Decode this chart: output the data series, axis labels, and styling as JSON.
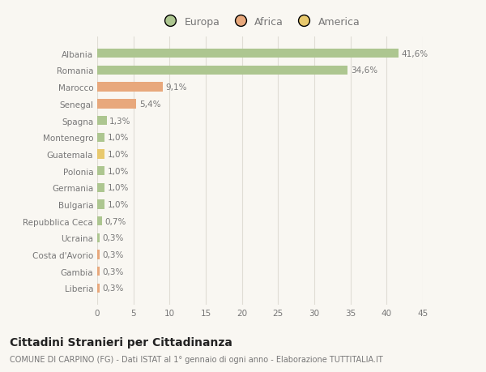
{
  "countries": [
    "Albania",
    "Romania",
    "Marocco",
    "Senegal",
    "Spagna",
    "Montenegro",
    "Guatemala",
    "Polonia",
    "Germania",
    "Bulgaria",
    "Repubblica Ceca",
    "Ucraina",
    "Costa d'Avorio",
    "Gambia",
    "Liberia"
  ],
  "values": [
    41.6,
    34.6,
    9.1,
    5.4,
    1.3,
    1.0,
    1.0,
    1.0,
    1.0,
    1.0,
    0.7,
    0.3,
    0.3,
    0.3,
    0.3
  ],
  "labels": [
    "41,6%",
    "34,6%",
    "9,1%",
    "5,4%",
    "1,3%",
    "1,0%",
    "1,0%",
    "1,0%",
    "1,0%",
    "1,0%",
    "0,7%",
    "0,3%",
    "0,3%",
    "0,3%",
    "0,3%"
  ],
  "colors": [
    "#adc690",
    "#adc690",
    "#e8a87c",
    "#e8a87c",
    "#adc690",
    "#adc690",
    "#e8c96e",
    "#adc690",
    "#adc690",
    "#adc690",
    "#adc690",
    "#adc690",
    "#e8a87c",
    "#e8a87c",
    "#e8a87c"
  ],
  "continent": [
    "Europa",
    "Europa",
    "Africa",
    "Africa",
    "Europa",
    "Europa",
    "America",
    "Europa",
    "Europa",
    "Europa",
    "Europa",
    "Europa",
    "Africa",
    "Africa",
    "Africa"
  ],
  "legend_labels": [
    "Europa",
    "Africa",
    "America"
  ],
  "legend_colors": [
    "#adc690",
    "#e8a87c",
    "#e8c96e"
  ],
  "xlim": [
    0,
    45
  ],
  "xticks": [
    0,
    5,
    10,
    15,
    20,
    25,
    30,
    35,
    40,
    45
  ],
  "title": "Cittadini Stranieri per Cittadinanza",
  "subtitle": "COMUNE DI CARPINO (FG) - Dati ISTAT al 1° gennaio di ogni anno - Elaborazione TUTTITALIA.IT",
  "background_color": "#f9f7f2",
  "grid_color": "#e0ddd5",
  "bar_height": 0.55,
  "label_fontsize": 7.5,
  "tick_fontsize": 7.5,
  "title_fontsize": 10,
  "subtitle_fontsize": 7,
  "text_color": "#777777"
}
